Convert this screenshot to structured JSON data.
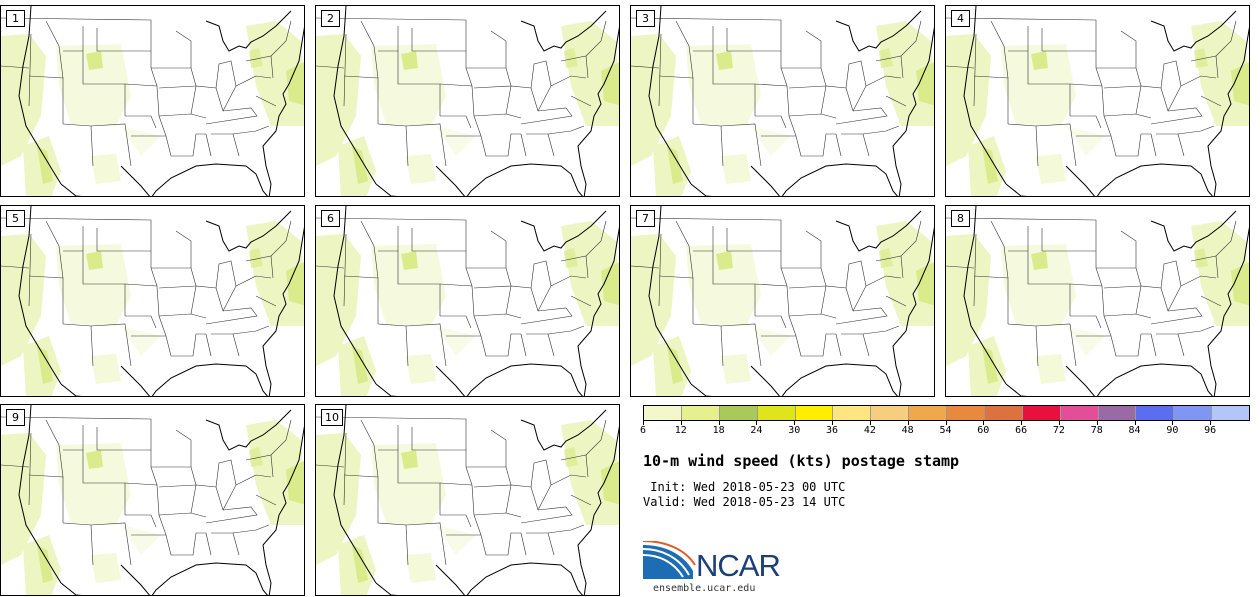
{
  "panels": [
    {
      "label": "1"
    },
    {
      "label": "2"
    },
    {
      "label": "3"
    },
    {
      "label": "4"
    },
    {
      "label": "5"
    },
    {
      "label": "6"
    },
    {
      "label": "7"
    },
    {
      "label": "8"
    },
    {
      "label": "9"
    },
    {
      "label": "10"
    }
  ],
  "colorbar": {
    "colors": [
      "#f2f7cc",
      "#e6f08f",
      "#a9c95a",
      "#dfe51a",
      "#ffee00",
      "#ffe680",
      "#f7cd80",
      "#f0a84d",
      "#e8893e",
      "#dc7240",
      "#e8103c",
      "#e24e98",
      "#9a6aa7",
      "#5c6ef0",
      "#8096f5",
      "#b3c6f8"
    ],
    "tick_labels": [
      "6",
      "12",
      "18",
      "24",
      "30",
      "36",
      "42",
      "48",
      "54",
      "60",
      "66",
      "72",
      "78",
      "84",
      "90",
      "96"
    ]
  },
  "title": "10-m wind speed (kts) postage stamp",
  "init": " Init: Wed 2018-05-23 00 UTC",
  "valid": "Valid: Wed 2018-05-23 14 UTC",
  "logo_text": "NCAR",
  "site": "ensemble.ucar.edu"
}
